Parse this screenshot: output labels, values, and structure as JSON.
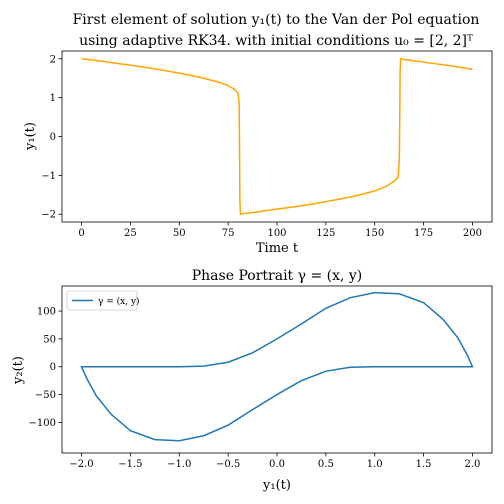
{
  "chart_data": [
    {
      "type": "line",
      "title_line1": "First element of solution y₁(t) to the Van der Pol equation",
      "title_line2": "using adaptive RK34. with initial conditions u₀ = [2, 2]ᵀ",
      "xlabel": "Time t",
      "ylabel": "y₁(t)",
      "xlim": [
        -10,
        210
      ],
      "ylim": [
        -2.2,
        2.2
      ],
      "xticks": [
        0,
        25,
        50,
        75,
        100,
        125,
        150,
        175,
        200
      ],
      "yticks": [
        -2,
        -1,
        0,
        1,
        2
      ],
      "xtick_labels": [
        "0",
        "25",
        "50",
        "75",
        "100",
        "125",
        "150",
        "175",
        "200"
      ],
      "ytick_labels": [
        "−2",
        "−1",
        "0",
        "1",
        "2"
      ],
      "grid": false,
      "color": "#ffa500",
      "series": [
        {
          "x": [
            0,
            10,
            20,
            30,
            40,
            50,
            60,
            70,
            75,
            78,
            80,
            80.6,
            80.8,
            81.0,
            81.3,
            82,
            90,
            100,
            110,
            120,
            130,
            140,
            150,
            156,
            160,
            162,
            162.6,
            162.8,
            163.0,
            163.3,
            164,
            170,
            180,
            190,
            200
          ],
          "y": [
            2.0,
            1.94,
            1.87,
            1.8,
            1.72,
            1.63,
            1.53,
            1.4,
            1.31,
            1.22,
            1.12,
            0.9,
            0.0,
            -1.6,
            -2.0,
            -1.99,
            -1.94,
            -1.87,
            -1.8,
            -1.72,
            -1.63,
            -1.53,
            -1.4,
            -1.28,
            -1.15,
            -1.05,
            -0.6,
            0.5,
            1.7,
            2.0,
            1.99,
            1.95,
            1.88,
            1.81,
            1.73
          ]
        }
      ]
    },
    {
      "type": "line",
      "title": "Phase Portrait γ = (x, y)",
      "xlabel": "y₁(t)",
      "ylabel": "y₂(t)",
      "xlim": [
        -2.2,
        2.2
      ],
      "ylim": [
        -155,
        145
      ],
      "xticks": [
        -2.0,
        -1.5,
        -1.0,
        -0.5,
        0.0,
        0.5,
        1.0,
        1.5,
        2.0
      ],
      "yticks": [
        -100,
        -50,
        0,
        50,
        100
      ],
      "xtick_labels": [
        "−2.0",
        "−1.5",
        "−1.0",
        "−0.5",
        "0.0",
        "0.5",
        "1.0",
        "1.5",
        "2.0"
      ],
      "ytick_labels": [
        "−100",
        "−50",
        "0",
        "50",
        "100"
      ],
      "grid": false,
      "legend": "top-left",
      "color": "#1f77b4",
      "series": [
        {
          "name": "γ = (x, y)",
          "x": [
            1.72,
            2.0,
            1.95,
            1.85,
            1.7,
            1.5,
            1.25,
            1.0,
            0.75,
            0.5,
            0.25,
            0.0,
            -0.25,
            -0.5,
            -0.75,
            -1.0,
            -1.2,
            -1.5,
            -1.8,
            -2.0,
            -1.95,
            -1.85,
            -1.7,
            -1.5,
            -1.25,
            -1.0,
            -0.75,
            -0.5,
            -0.25,
            0.0,
            0.25,
            0.5,
            0.75,
            1.0,
            1.2,
            1.5,
            1.8,
            2.0
          ],
          "y": [
            0,
            0,
            20,
            52,
            85,
            115,
            131,
            133,
            124,
            105,
            77,
            50,
            25,
            8,
            1,
            0,
            0,
            0,
            0,
            0,
            -20,
            -52,
            -85,
            -115,
            -131,
            -133,
            -124,
            -105,
            -77,
            -50,
            -25,
            -8,
            -1,
            0,
            0,
            0,
            0,
            0
          ]
        }
      ]
    }
  ]
}
